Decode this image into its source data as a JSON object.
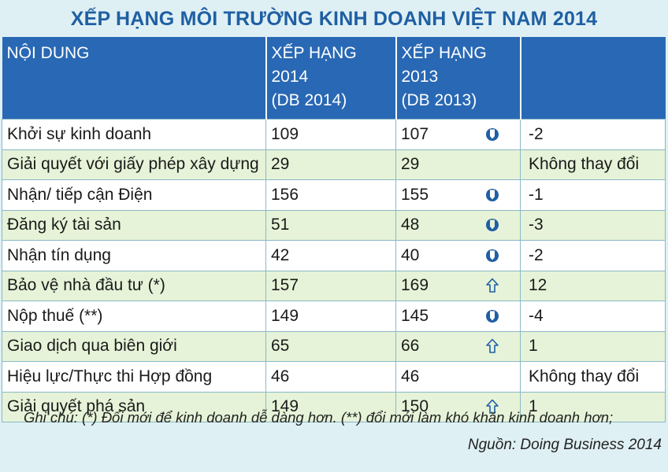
{
  "title": "XẾP HẠNG MÔI TRƯỜNG KINH DOANH VIỆT NAM 2014",
  "headers": {
    "col1": "NỘI DUNG",
    "col2_line1": "XẾP HẠNG 2014",
    "col2_line2": "(DB 2014)",
    "col3_line1": "XẾP HẠNG 2013",
    "col3_line2": "(DB 2013)",
    "col4": ""
  },
  "colors": {
    "header_bg": "#2968b4",
    "title": "#1f5fa3",
    "arrow": "#1f5fa3",
    "row_alt": "#e6f3d8"
  },
  "rows": [
    {
      "label": "Khởi sự kinh doanh",
      "rank2014": "109",
      "rank2013": "107",
      "icon": "down-arrow-icon",
      "change": "-2"
    },
    {
      "label": "Giải quyết với giấy phép xây dựng",
      "rank2014": "29",
      "rank2013": "29",
      "icon": "",
      "change": "Không thay đổi"
    },
    {
      "label": "Nhận/ tiếp cận Điện",
      "rank2014": "156",
      "rank2013": "155",
      "icon": "down-arrow-icon",
      "change": "-1"
    },
    {
      "label": "Đăng ký tài sản",
      "rank2014": "51",
      "rank2013": "48",
      "icon": "down-arrow-icon",
      "change": "-3"
    },
    {
      "label": "Nhận tín dụng",
      "rank2014": "42",
      "rank2013": "40",
      "icon": "down-arrow-icon",
      "change": "-2"
    },
    {
      "label": "Bảo vệ nhà đầu tư (*)",
      "rank2014": "157",
      "rank2013": "169",
      "icon": "up-arrow-icon",
      "change": "12"
    },
    {
      "label": "Nộp thuế (**)",
      "rank2014": "149",
      "rank2013": "145",
      "icon": "down-arrow-icon",
      "change": "-4"
    },
    {
      "label": "Giao dịch qua biên giới",
      "rank2014": "65",
      "rank2013": "66",
      "icon": "up-arrow-icon",
      "change": "1"
    },
    {
      "label": "Hiệu lực/Thực thi Hợp đồng",
      "rank2014": "46",
      "rank2013": "46",
      "icon": "",
      "change": "Không thay đổi"
    },
    {
      "label": "Giải quyết phá sản",
      "rank2014": "149",
      "rank2013": "150",
      "icon": "up-arrow-icon",
      "change": "1"
    }
  ],
  "footer": {
    "note": "Ghi chú:  (*)  Đổi mới để kinh doanh dễ dàng hơn.  (**) đổi mới làm khó khăn kinh doanh hơn;",
    "source": "Nguồn: Doing Business 2014"
  }
}
